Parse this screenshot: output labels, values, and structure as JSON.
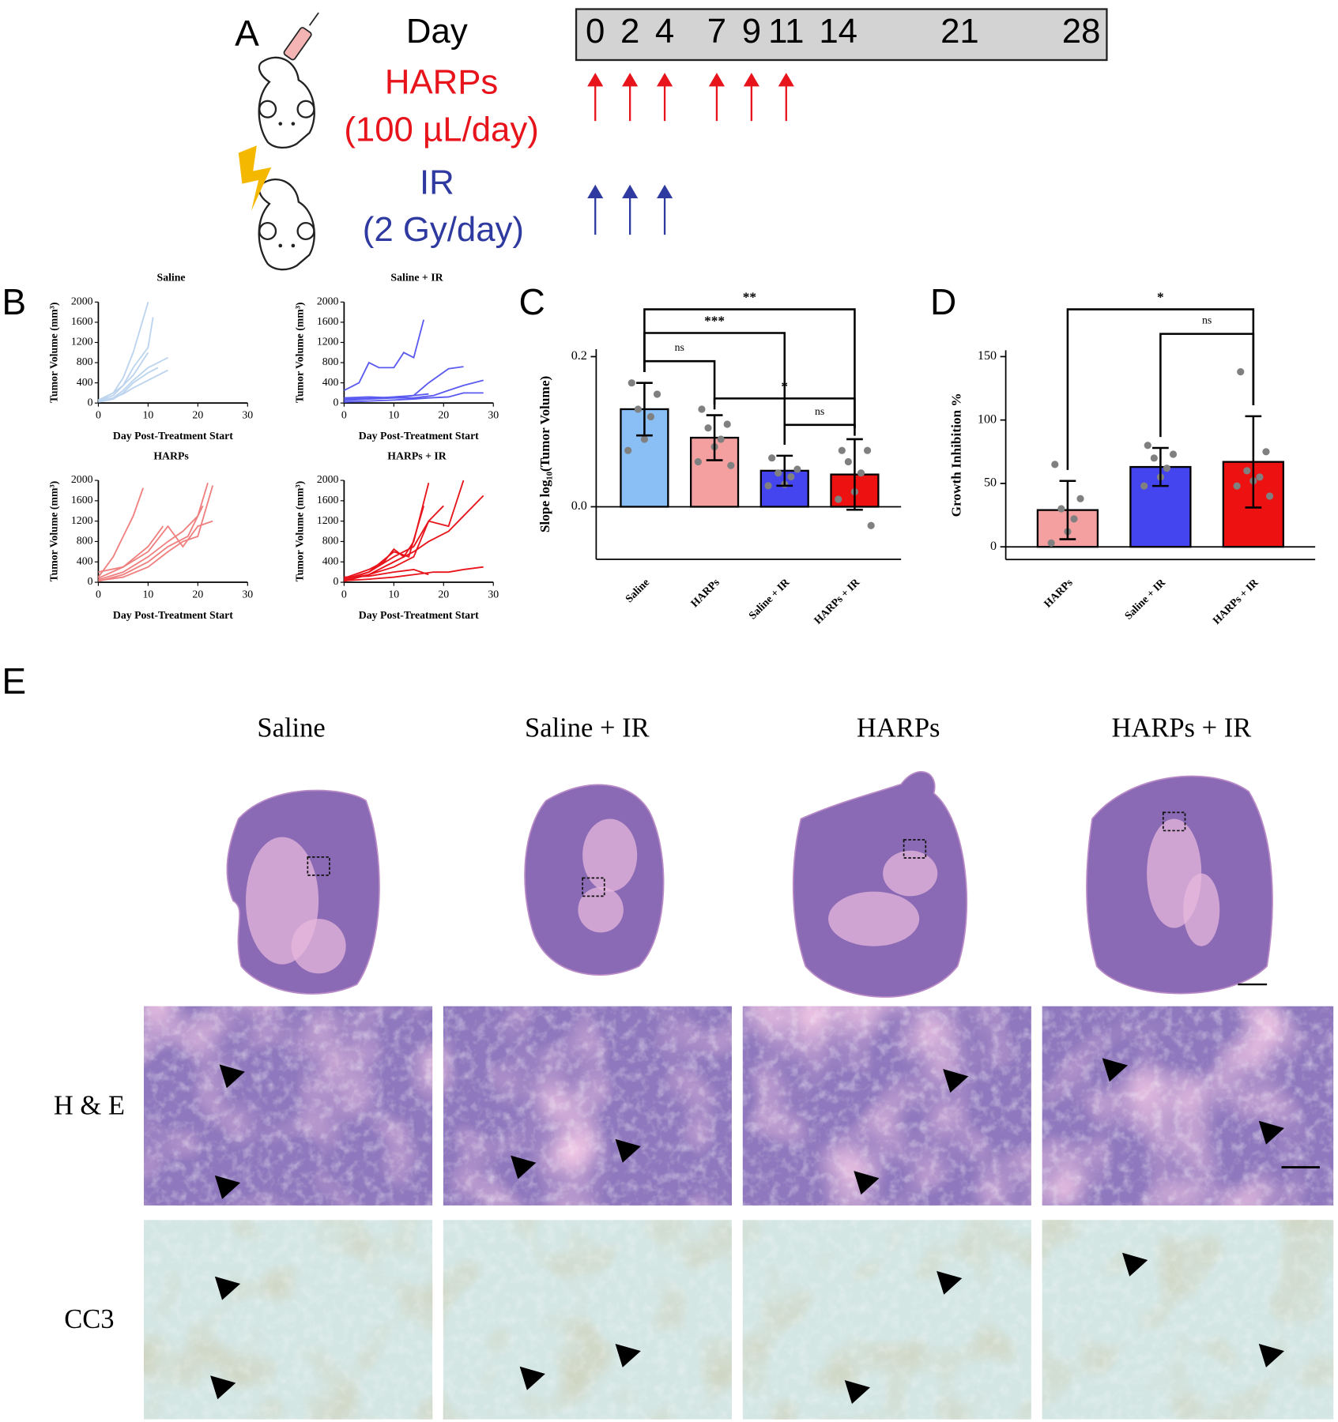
{
  "panel_labels": {
    "a": "A",
    "b": "B",
    "c": "C",
    "d": "D",
    "e": "E"
  },
  "timeline": {
    "day_label": "Day",
    "days": [
      0,
      2,
      4,
      7,
      9,
      11,
      14,
      21,
      28
    ],
    "harps_label": "HARPs",
    "harps_dose": "(100 µL/day)",
    "harps_days": [
      0,
      2,
      4,
      7,
      9,
      11
    ],
    "ir_label": "IR",
    "ir_dose": "(2 Gy/day)",
    "ir_days": [
      0,
      2,
      4
    ]
  },
  "chart_data": [
    {
      "type": "line",
      "title": "Saline",
      "xlabel": "Day Post-Treatment Start",
      "ylabel": "Tumor Volume (mm³)",
      "xlim": [
        0,
        30
      ],
      "ylim": [
        0,
        2000
      ],
      "xticks": [
        0,
        10,
        20,
        30
      ],
      "yticks": [
        0,
        400,
        800,
        1200,
        1600,
        2000
      ],
      "series": [
        {
          "color": "#bcd4ee",
          "x": [
            0,
            3,
            5,
            7,
            10
          ],
          "values": [
            50,
            200,
            500,
            1000,
            2000
          ]
        },
        {
          "color": "#bcd4ee",
          "x": [
            0,
            3,
            5,
            7,
            10,
            11
          ],
          "values": [
            40,
            150,
            350,
            700,
            1100,
            1700
          ]
        },
        {
          "color": "#bcd4ee",
          "x": [
            0,
            3,
            5,
            7,
            10,
            12,
            14
          ],
          "values": [
            30,
            100,
            250,
            450,
            700,
            800,
            900
          ]
        },
        {
          "color": "#bcd4ee",
          "x": [
            0,
            3,
            5,
            7,
            10,
            12
          ],
          "values": [
            20,
            80,
            200,
            400,
            600,
            700
          ]
        },
        {
          "color": "#bcd4ee",
          "x": [
            0,
            3,
            5,
            7,
            10
          ],
          "values": [
            60,
            200,
            350,
            550,
            1000
          ]
        },
        {
          "color": "#bcd4ee",
          "x": [
            0,
            3,
            5,
            7,
            10,
            14
          ],
          "values": [
            30,
            100,
            180,
            300,
            450,
            650
          ]
        }
      ]
    },
    {
      "type": "line",
      "title": "Saline + IR",
      "xlabel": "Day Post-Treatment Start",
      "ylabel": "Tumor Volume (mm³)",
      "xlim": [
        0,
        30
      ],
      "ylim": [
        0,
        2000
      ],
      "xticks": [
        0,
        10,
        20,
        30
      ],
      "yticks": [
        0,
        400,
        800,
        1200,
        1600,
        2000
      ],
      "series": [
        {
          "color": "#5a5af0",
          "x": [
            0,
            3,
            5,
            7,
            10,
            12,
            14,
            16
          ],
          "values": [
            250,
            400,
            800,
            700,
            700,
            1000,
            900,
            1650
          ]
        },
        {
          "color": "#5a5af0",
          "x": [
            0,
            5,
            10,
            14,
            17,
            21,
            24
          ],
          "values": [
            100,
            120,
            100,
            150,
            400,
            680,
            720
          ]
        },
        {
          "color": "#5a5af0",
          "x": [
            0,
            5,
            10,
            14,
            18,
            21,
            24,
            28
          ],
          "values": [
            50,
            80,
            100,
            100,
            150,
            250,
            350,
            450
          ]
        },
        {
          "color": "#5a5af0",
          "x": [
            0,
            5,
            10,
            14,
            17,
            21,
            24,
            28
          ],
          "values": [
            20,
            40,
            60,
            80,
            100,
            120,
            200,
            200
          ]
        },
        {
          "color": "#5a5af0",
          "x": [
            0,
            5,
            10,
            14,
            17
          ],
          "values": [
            80,
            90,
            120,
            150,
            180
          ]
        }
      ]
    },
    {
      "type": "line",
      "title": "HARPs",
      "xlabel": "Day Post-Treatment Start",
      "ylabel": "Tumor Volume (mm³)",
      "xlim": [
        0,
        30
      ],
      "ylim": [
        0,
        2000
      ],
      "xticks": [
        0,
        10,
        20,
        30
      ],
      "yticks": [
        0,
        400,
        800,
        1200,
        1600,
        2000
      ],
      "series": [
        {
          "color": "#f08080",
          "x": [
            0,
            3,
            5,
            7,
            9
          ],
          "values": [
            100,
            500,
            900,
            1300,
            1850
          ]
        },
        {
          "color": "#f08080",
          "x": [
            0,
            5,
            10,
            14,
            17,
            20,
            22
          ],
          "values": [
            50,
            200,
            500,
            800,
            1000,
            1300,
            1950
          ]
        },
        {
          "color": "#f08080",
          "x": [
            0,
            5,
            10,
            14,
            17,
            20,
            23
          ],
          "values": [
            200,
            300,
            600,
            1100,
            700,
            1100,
            1200
          ]
        },
        {
          "color": "#f08080",
          "x": [
            0,
            5,
            10,
            13
          ],
          "values": [
            80,
            300,
            700,
            1100
          ]
        },
        {
          "color": "#f08080",
          "x": [
            0,
            5,
            10,
            14,
            17,
            20,
            23
          ],
          "values": [
            30,
            100,
            300,
            600,
            800,
            900,
            1900
          ]
        },
        {
          "color": "#f08080",
          "x": [
            0,
            5,
            10,
            14,
            18,
            21
          ],
          "values": [
            20,
            150,
            400,
            700,
            900,
            1500
          ]
        }
      ]
    },
    {
      "type": "line",
      "title": "HARPs + IR",
      "xlabel": "Day Post-Treatment Start",
      "ylabel": "Tumor Volume (mm³)",
      "xlim": [
        0,
        30
      ],
      "ylim": [
        0,
        2000
      ],
      "xticks": [
        0,
        10,
        20,
        30
      ],
      "yticks": [
        0,
        400,
        800,
        1200,
        1600,
        2000
      ],
      "series": [
        {
          "color": "#e8141c",
          "x": [
            0,
            5,
            8,
            10,
            12,
            14,
            17
          ],
          "values": [
            80,
            250,
            400,
            650,
            500,
            800,
            1950
          ]
        },
        {
          "color": "#e8141c",
          "x": [
            0,
            5,
            10,
            14,
            17,
            21,
            24
          ],
          "values": [
            60,
            200,
            500,
            700,
            1200,
            1100,
            2000
          ]
        },
        {
          "color": "#e8141c",
          "x": [
            0,
            5,
            10,
            14,
            17,
            21,
            24,
            28
          ],
          "values": [
            50,
            150,
            400,
            600,
            800,
            1000,
            1300,
            1700
          ]
        },
        {
          "color": "#e8141c",
          "x": [
            0,
            5,
            10,
            14,
            18,
            21,
            24,
            28
          ],
          "values": [
            30,
            60,
            100,
            150,
            200,
            200,
            250,
            300
          ]
        },
        {
          "color": "#e8141c",
          "x": [
            0,
            5,
            10,
            14,
            17,
            20
          ],
          "values": [
            20,
            150,
            300,
            500,
            1200,
            1500
          ]
        },
        {
          "color": "#e8141c",
          "x": [
            0,
            5,
            10,
            14,
            17
          ],
          "values": [
            100,
            120,
            200,
            250,
            150
          ]
        },
        {
          "color": "#e8141c",
          "x": [
            0,
            5,
            10,
            13,
            16
          ],
          "values": [
            40,
            200,
            600,
            500,
            1500
          ]
        }
      ]
    },
    {
      "type": "bar",
      "ylabel": "Slope log₁₀(Tumor Volume)",
      "categories": [
        "Saline",
        "HARPs",
        "Saline + IR",
        "HARPs + IR"
      ],
      "colors": [
        "#89bff5",
        "#f5a0a0",
        "#4545f0",
        "#ee1111"
      ],
      "values": [
        0.13,
        0.092,
        0.048,
        0.043
      ],
      "errors": [
        0.035,
        0.03,
        0.02,
        0.047
      ],
      "points": [
        [
          0.165,
          0.15,
          0.13,
          0.12,
          0.09,
          0.075
        ],
        [
          0.13,
          0.11,
          0.105,
          0.09,
          0.08,
          0.06,
          0.055
        ],
        [
          0.065,
          0.05,
          0.045,
          0.04,
          0.03,
          0.028
        ],
        [
          0.075,
          0.075,
          0.06,
          0.045,
          0.02,
          0.01,
          -0.025
        ]
      ],
      "ylim": [
        -0.07,
        0.21
      ],
      "yticks": [
        {
          "value": 0,
          "label": "0.0"
        },
        0.2
      ],
      "significance": [
        {
          "from": 0,
          "to": 1,
          "label": "ns"
        },
        {
          "from": 0,
          "to": 2,
          "label": "***"
        },
        {
          "from": 0,
          "to": 3,
          "label": "**"
        },
        {
          "from": 1,
          "to": 3,
          "label": "*"
        },
        {
          "from": 2,
          "to": 3,
          "label": "ns"
        }
      ]
    },
    {
      "type": "bar",
      "ylabel": "Growth Inhibition %",
      "categories": [
        "HARPs",
        "Saline + IR",
        "HARPs + IR"
      ],
      "colors": [
        "#f5a0a0",
        "#4545f0",
        "#ee1111"
      ],
      "values": [
        29,
        63,
        67
      ],
      "errors": [
        23,
        15,
        36
      ],
      "points": [
        [
          65,
          38,
          30,
          22,
          12,
          3
        ],
        [
          80,
          73,
          70,
          62,
          55,
          48
        ],
        [
          138,
          75,
          60,
          55,
          52,
          48,
          40
        ]
      ],
      "ylim": [
        -10,
        155
      ],
      "yticks": [
        0,
        50,
        100,
        150
      ],
      "significance": [
        {
          "from": 0,
          "to": 2,
          "label": "*"
        },
        {
          "from": 1,
          "to": 2,
          "label": "ns"
        }
      ]
    }
  ],
  "histology": {
    "columns": [
      "Saline",
      "Saline + IR",
      "HARPs",
      "HARPs + IR"
    ],
    "rows": [
      "H & E",
      "CC3"
    ]
  }
}
